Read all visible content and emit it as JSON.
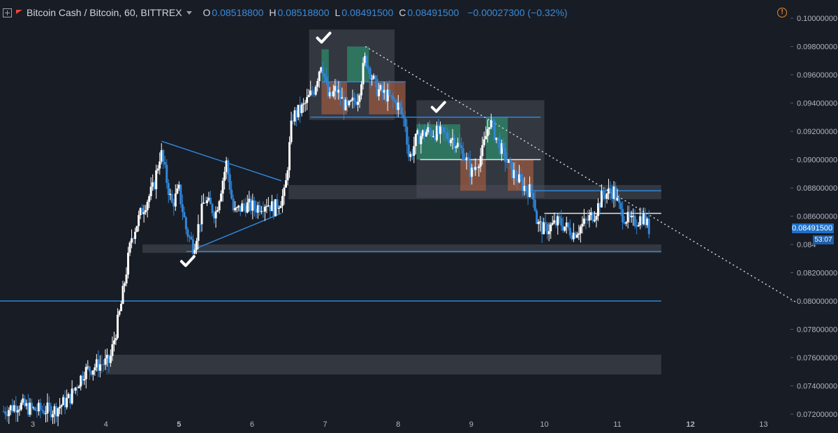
{
  "header": {
    "symbol": "Bitcoin Cash / Bitcoin, 60, BITTREX",
    "o_label": "O",
    "o_value": "0.08518800",
    "h_label": "H",
    "h_value": "0.08518800",
    "l_label": "L",
    "l_value": "0.08491500",
    "c_label": "C",
    "c_value": "0.08491500",
    "change": "−0.00027300 (−0.32%)",
    "warning_icon": "!"
  },
  "price_axis": {
    "labels": [
      "0.10000000",
      "0.09800000",
      "0.09600000",
      "0.09400000",
      "0.09200000",
      "0.09000000",
      "0.08800000",
      "0.08600000",
      "0.084",
      "0.08200000",
      "0.08000000",
      "0.07800000",
      "0.07600000",
      "0.07400000",
      "0.07200000"
    ],
    "current_price": "0.08491500",
    "countdown": "53:07"
  },
  "time_axis": {
    "labels": [
      "3",
      "4",
      "5",
      "6",
      "7",
      "8",
      "9",
      "10",
      "11",
      "12",
      "13"
    ],
    "bold": [
      "5",
      "12"
    ]
  },
  "colors": {
    "background": "#181c25",
    "trendline": "#2f86d9",
    "zone": "#4a4e58",
    "up_candle": "#ffffff",
    "down_candle": "#2f86d9",
    "green_box": "#2e8a6a",
    "red_box": "#9a5a40"
  },
  "chart_data": {
    "type": "candlestick",
    "title": "Bitcoin Cash / Bitcoin, 60, BITTREX",
    "ylim": [
      0.0718,
      0.1003
    ],
    "xlim": [
      2.55,
      13.35
    ],
    "close_path": [
      [
        2.6,
        0.0722
      ],
      [
        2.8,
        0.0727
      ],
      [
        3.0,
        0.0723
      ],
      [
        3.3,
        0.0723
      ],
      [
        3.5,
        0.0731
      ],
      [
        3.7,
        0.075
      ],
      [
        3.9,
        0.0755
      ],
      [
        4.05,
        0.0757
      ],
      [
        4.2,
        0.0795
      ],
      [
        4.35,
        0.0845
      ],
      [
        4.5,
        0.0865
      ],
      [
        4.65,
        0.088
      ],
      [
        4.75,
        0.0906
      ],
      [
        4.9,
        0.0868
      ],
      [
        5.0,
        0.0878
      ],
      [
        5.1,
        0.085
      ],
      [
        5.2,
        0.0838
      ],
      [
        5.35,
        0.0872
      ],
      [
        5.5,
        0.0862
      ],
      [
        5.65,
        0.0898
      ],
      [
        5.75,
        0.0862
      ],
      [
        5.9,
        0.0868
      ],
      [
        6.05,
        0.0866
      ],
      [
        6.2,
        0.087
      ],
      [
        6.3,
        0.0865
      ],
      [
        6.45,
        0.0876
      ],
      [
        6.55,
        0.093
      ],
      [
        6.7,
        0.0937
      ],
      [
        6.85,
        0.095
      ],
      [
        6.95,
        0.097
      ],
      [
        7.05,
        0.0942
      ],
      [
        7.15,
        0.095
      ],
      [
        7.3,
        0.0935
      ],
      [
        7.45,
        0.0945
      ],
      [
        7.55,
        0.0972
      ],
      [
        7.7,
        0.095
      ],
      [
        7.85,
        0.0945
      ],
      [
        8.0,
        0.0938
      ],
      [
        8.1,
        0.0925
      ],
      [
        8.15,
        0.09
      ],
      [
        8.25,
        0.0915
      ],
      [
        8.4,
        0.092
      ],
      [
        8.6,
        0.0918
      ],
      [
        8.75,
        0.0915
      ],
      [
        8.9,
        0.0904
      ],
      [
        9.0,
        0.089
      ],
      [
        9.15,
        0.0905
      ],
      [
        9.25,
        0.0928
      ],
      [
        9.4,
        0.0908
      ],
      [
        9.55,
        0.0892
      ],
      [
        9.7,
        0.0882
      ],
      [
        9.85,
        0.0876
      ],
      [
        9.9,
        0.0855
      ],
      [
        10.0,
        0.085
      ],
      [
        10.2,
        0.0856
      ],
      [
        10.4,
        0.0848
      ],
      [
        10.55,
        0.0855
      ],
      [
        10.7,
        0.0863
      ],
      [
        10.8,
        0.0875
      ],
      [
        10.95,
        0.0878
      ],
      [
        11.05,
        0.0862
      ],
      [
        11.2,
        0.0855
      ],
      [
        11.35,
        0.086
      ],
      [
        11.45,
        0.08491
      ]
    ],
    "annotations": {
      "horizontal_lines": [
        {
          "y": 0.08,
          "x": [
            2.55,
            11.6
          ]
        },
        {
          "y": 0.0835,
          "x": [
            5.1,
            11.6
          ]
        },
        {
          "y": 0.0878,
          "x": [
            9.7,
            11.6
          ]
        },
        {
          "y": 0.093,
          "x": [
            6.8,
            9.95
          ]
        },
        {
          "y": 0.0955,
          "x": [
            6.95,
            8.1
          ]
        },
        {
          "y": 0.09,
          "x": [
            8.3,
            9.95
          ]
        },
        {
          "y": 0.0862,
          "x": [
            10.0,
            11.6
          ]
        }
      ],
      "zones": [
        {
          "x": [
            4.0,
            11.6
          ],
          "y": [
            0.0748,
            0.0762
          ]
        },
        {
          "x": [
            4.5,
            11.6
          ],
          "y": [
            0.0834,
            0.084
          ]
        },
        {
          "x": [
            6.5,
            11.6
          ],
          "y": [
            0.0872,
            0.0882
          ]
        },
        {
          "x": [
            6.78,
            7.95
          ],
          "y": [
            0.0928,
            0.0992
          ]
        },
        {
          "x": [
            8.25,
            10.0
          ],
          "y": [
            0.0873,
            0.0942
          ]
        }
      ],
      "green_boxes": [
        {
          "x": [
            6.95,
            7.05
          ],
          "y": [
            0.0955,
            0.0978
          ]
        },
        {
          "x": [
            7.3,
            7.6
          ],
          "y": [
            0.0955,
            0.098
          ]
        },
        {
          "x": [
            8.25,
            8.85
          ],
          "y": [
            0.09,
            0.0925
          ]
        },
        {
          "x": [
            9.2,
            9.5
          ],
          "y": [
            0.09,
            0.093
          ]
        }
      ],
      "red_boxes": [
        {
          "x": [
            6.95,
            7.3
          ],
          "y": [
            0.0932,
            0.0955
          ]
        },
        {
          "x": [
            7.6,
            8.1
          ],
          "y": [
            0.0932,
            0.0955
          ]
        },
        {
          "x": [
            8.85,
            9.2
          ],
          "y": [
            0.0878,
            0.09
          ]
        },
        {
          "x": [
            9.5,
            9.85
          ],
          "y": [
            0.0878,
            0.09
          ]
        }
      ],
      "triangle": [
        [
          4.76,
          0.0913
        ],
        [
          6.4,
          0.0885
        ],
        [
          6.4,
          0.0862
        ],
        [
          5.18,
          0.0836
        ]
      ],
      "dotted_trendline": [
        [
          7.55,
          0.098
        ],
        [
          13.45,
          0.0799
        ]
      ],
      "checkmarks": [
        [
          5.12,
          0.0828
        ],
        [
          6.98,
          0.0986
        ],
        [
          8.55,
          0.0937
        ]
      ]
    }
  }
}
